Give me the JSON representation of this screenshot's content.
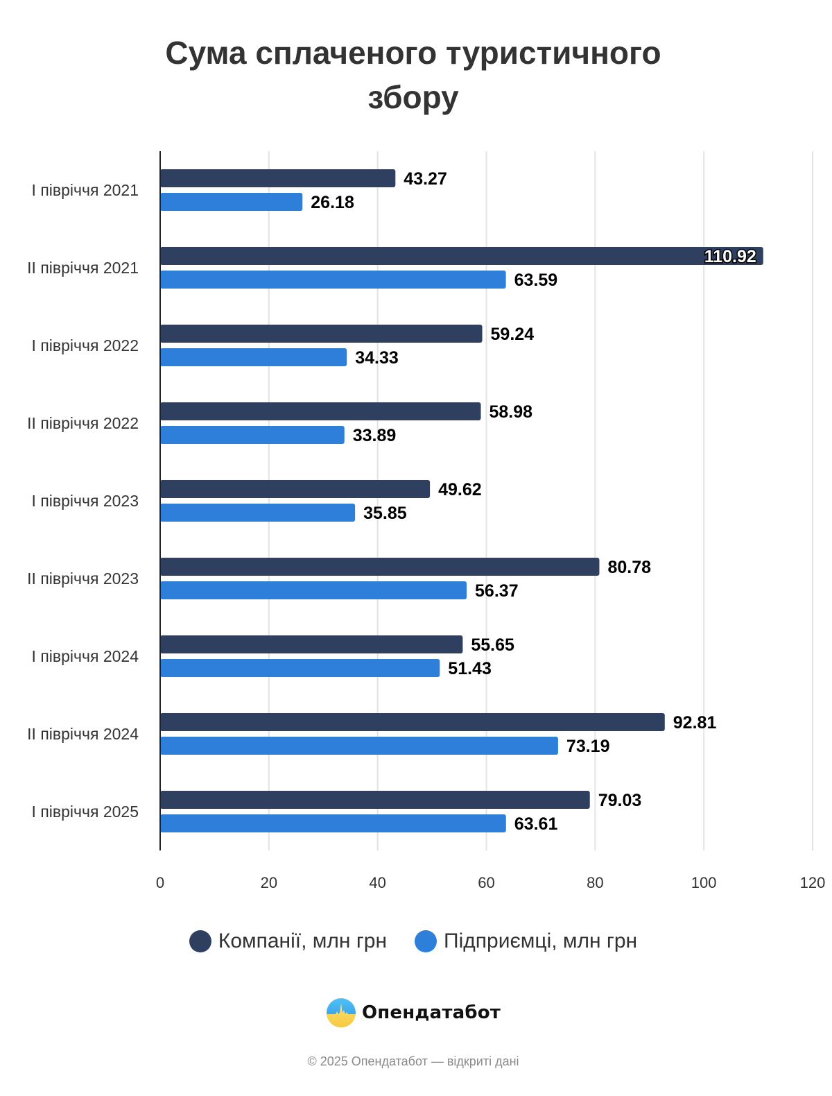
{
  "chart_data": {
    "type": "bar",
    "orientation": "horizontal",
    "title": "Сума сплаченого туристичного збору",
    "title_lines": [
      "Сума сплаченого туристичного",
      "збору"
    ],
    "categories": [
      "I півріччя 2021",
      "II півріччя 2021",
      "I півріччя 2022",
      "II півріччя 2022",
      "I півріччя 2023",
      "II півріччя 2023",
      "I півріччя 2024",
      "II півріччя 2024",
      "I півріччя 2025"
    ],
    "series": [
      {
        "name": "Компанії, млн грн",
        "color": "#2f3f5f",
        "values": [
          43.27,
          110.92,
          59.24,
          58.98,
          49.62,
          80.78,
          55.65,
          92.81,
          79.03
        ]
      },
      {
        "name": "Підприємці, млн грн",
        "color": "#2d7fd9",
        "values": [
          26.18,
          63.59,
          34.33,
          33.89,
          35.85,
          56.37,
          51.43,
          73.19,
          63.61
        ]
      }
    ],
    "xlabel": "",
    "ylabel": "",
    "xlim": [
      0,
      120
    ],
    "xticks": [
      0,
      20,
      40,
      60,
      80,
      100,
      120
    ],
    "grid": true,
    "legend_position": "bottom",
    "data_labels": true
  },
  "branding": {
    "logo_name": "Опендатабот",
    "copyright": "© 2025 Опендатабот — відкриті дані"
  }
}
